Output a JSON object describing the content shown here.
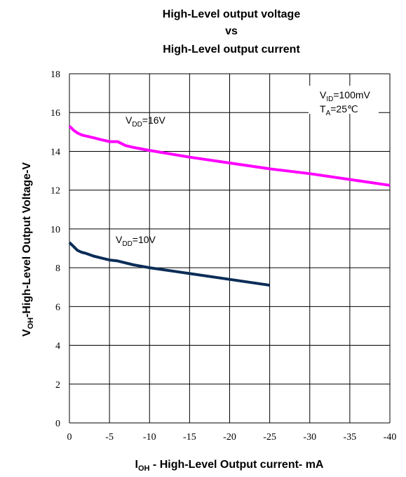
{
  "chart_data": {
    "type": "line",
    "title_lines": [
      "High-Level output voltage",
      "vs",
      "High-Level output current"
    ],
    "ylabel": {
      "main": "V",
      "sub": "OH",
      "rest": "-High-Level Output Voltage-V"
    },
    "xlabel": {
      "main": "I",
      "sub": "OH",
      "rest": " - High-Level Output current- mA"
    },
    "xlim": [
      0,
      -40
    ],
    "ylim": [
      0,
      18
    ],
    "x_ticks": [
      "0",
      "-5",
      "-10",
      "-15",
      "-20",
      "-25",
      "-30",
      "-35",
      "-40"
    ],
    "y_ticks": [
      "0",
      "2",
      "4",
      "6",
      "8",
      "10",
      "12",
      "14",
      "16",
      "18"
    ],
    "grid": true,
    "conditions": {
      "line1": {
        "main": "V",
        "sub": "ID",
        "rest": "=100mV"
      },
      "line2": {
        "main": "T",
        "sub": "A",
        "rest": "=25℃"
      }
    },
    "series": [
      {
        "name": "VDD=16V",
        "label": {
          "main": "V",
          "sub": "DD",
          "rest": "=16V"
        },
        "color": "#ff00ff",
        "x": [
          0,
          -0.5,
          -1,
          -1.5,
          -2,
          -3,
          -4,
          -5,
          -6,
          -7,
          -8,
          -10,
          -15,
          -20,
          -25,
          -30,
          -35,
          -40
        ],
        "y": [
          15.3,
          15.1,
          14.95,
          14.85,
          14.8,
          14.7,
          14.6,
          14.5,
          14.5,
          14.3,
          14.2,
          14.05,
          13.7,
          13.4,
          13.1,
          12.85,
          12.55,
          12.25
        ]
      },
      {
        "name": "VDD=10V",
        "label": {
          "main": "V",
          "sub": "DD",
          "rest": "=10V"
        },
        "color": "#0b2d57",
        "x": [
          0,
          -0.5,
          -1,
          -1.5,
          -2,
          -3,
          -4,
          -5,
          -6,
          -8,
          -10,
          -15,
          -20,
          -25
        ],
        "y": [
          9.3,
          9.1,
          8.9,
          8.8,
          8.75,
          8.6,
          8.5,
          8.4,
          8.35,
          8.15,
          8.0,
          7.7,
          7.4,
          7.1
        ]
      }
    ]
  }
}
